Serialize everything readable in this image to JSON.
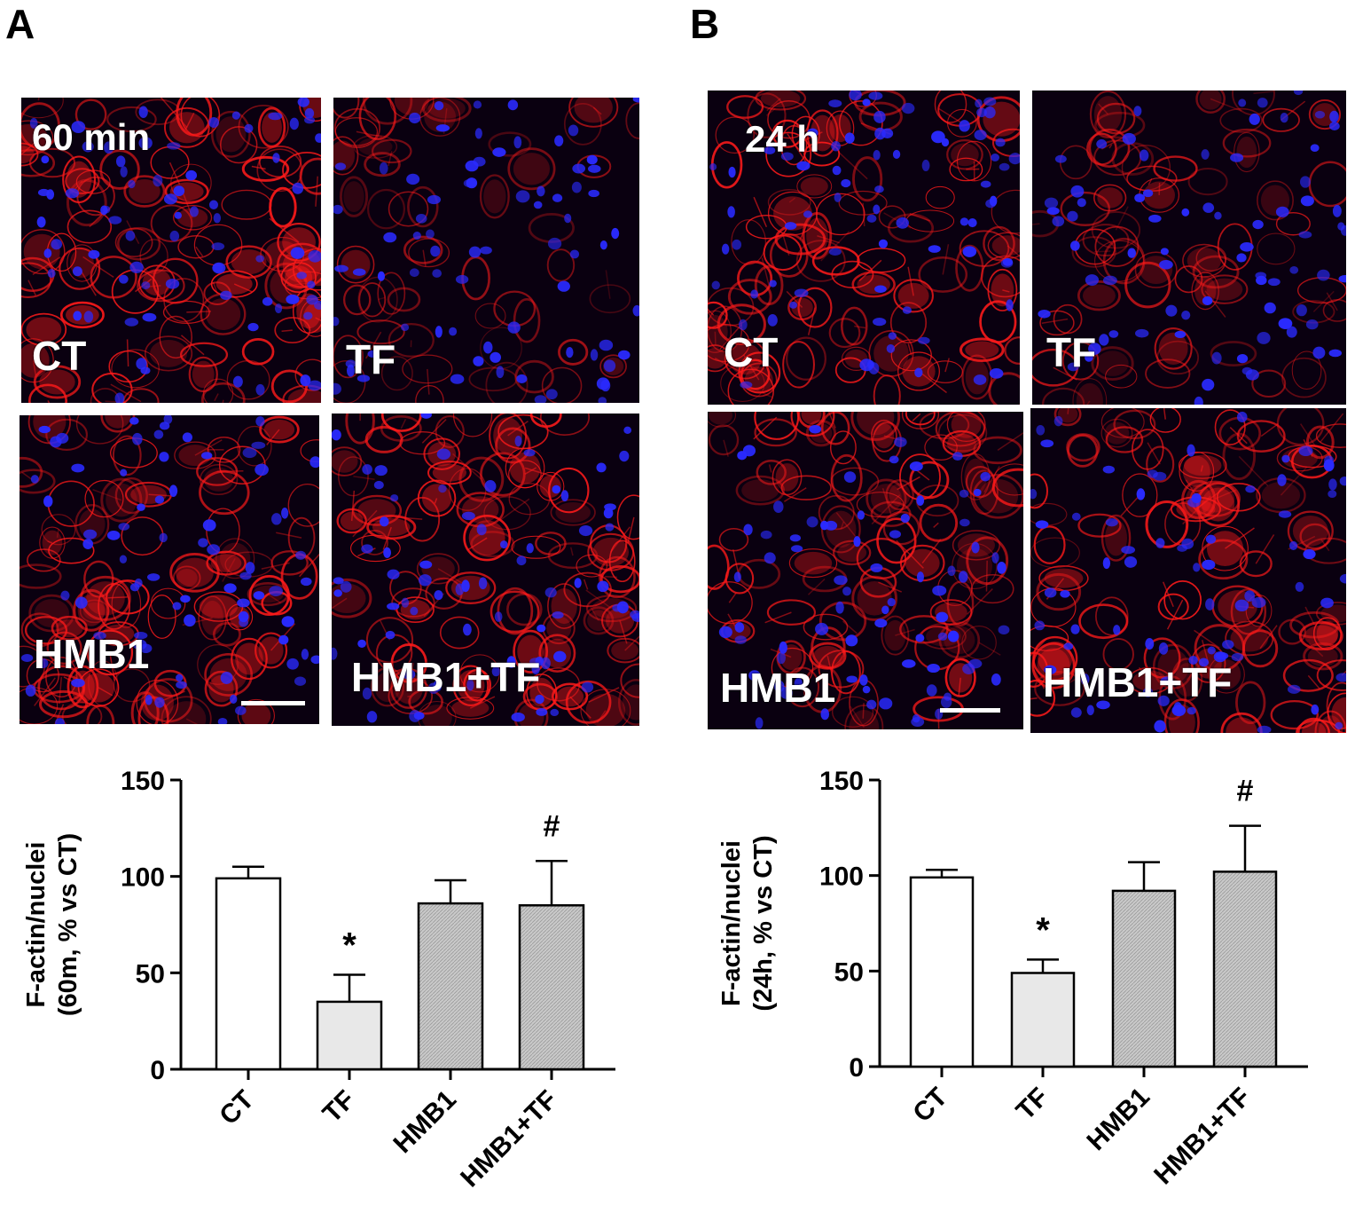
{
  "panel_a": {
    "letter": "A",
    "images": [
      {
        "tag": "60 min",
        "label": "CT",
        "seed": 11,
        "density": 1.0
      },
      {
        "tag": "",
        "label": "TF",
        "seed": 23,
        "density": 0.45
      },
      {
        "tag": "",
        "label": "HMB1",
        "seed": 37,
        "density": 0.95
      },
      {
        "tag": "",
        "label": "HMB1+TF",
        "seed": 51,
        "density": 0.95
      }
    ]
  },
  "panel_b": {
    "letter": "B",
    "images": [
      {
        "tag": "24 h",
        "label": "CT",
        "seed": 67,
        "density": 1.0
      },
      {
        "tag": "",
        "label": "TF",
        "seed": 79,
        "density": 0.6
      },
      {
        "tag": "",
        "label": "HMB1",
        "seed": 83,
        "density": 0.95
      },
      {
        "tag": "",
        "label": "HMB1+TF",
        "seed": 97,
        "density": 0.95
      }
    ]
  },
  "colors": {
    "actin": "#ff1a1a",
    "nuclei": "#2a2aff",
    "background": "#0a0010",
    "bar_ct": "#ffffff",
    "bar_tf": "#e8e8e8",
    "bar_hmb": "#c9c9c9"
  },
  "chart_data": [
    {
      "type": "bar",
      "categories": [
        "CT",
        "TF",
        "HMB1",
        "HMB1+TF"
      ],
      "values": [
        99,
        35,
        86,
        85
      ],
      "errors": [
        6,
        14,
        12,
        23
      ],
      "annotations": [
        "",
        "*",
        "",
        "#"
      ],
      "ylabel_line1": "F-actin/nuclei",
      "ylabel_line2": "(60m, % vs CT)",
      "ylim": [
        0,
        150
      ],
      "yticks": [
        "0",
        "50",
        "100",
        "150"
      ],
      "bar_fills": [
        "white",
        "light-gray",
        "hatched",
        "hatched"
      ]
    },
    {
      "type": "bar",
      "categories": [
        "CT",
        "TF",
        "HMB1",
        "HMB1+TF"
      ],
      "values": [
        99,
        49,
        92,
        102
      ],
      "errors": [
        4,
        7,
        15,
        24
      ],
      "annotations": [
        "",
        "*",
        "",
        "#"
      ],
      "ylabel_line1": "F-actin/nuclei",
      "ylabel_line2": "(24h, % vs CT)",
      "ylim": [
        0,
        150
      ],
      "yticks": [
        "0",
        "50",
        "100",
        "150"
      ],
      "bar_fills": [
        "white",
        "light-gray",
        "hatched",
        "hatched"
      ]
    }
  ]
}
